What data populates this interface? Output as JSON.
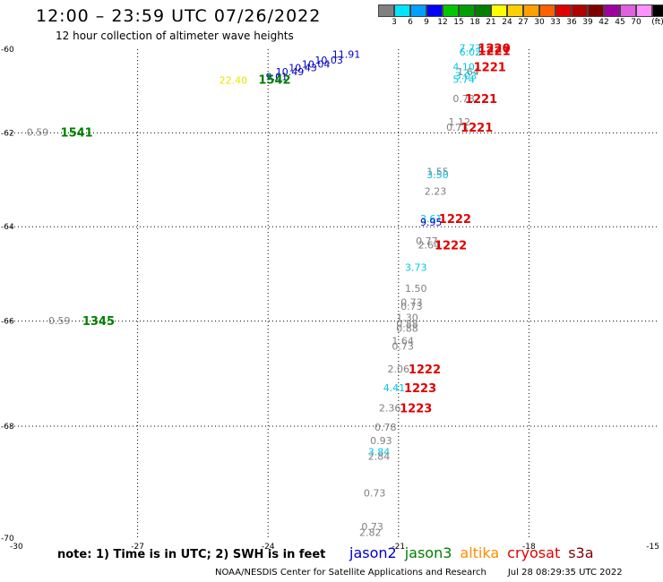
{
  "header": {
    "title": "12:00 – 23:59 UTC 07/26/2022",
    "subtitle": "12 hour collection of altimeter wave heights"
  },
  "colorbar": {
    "colors": [
      "#808080",
      "#00e5ff",
      "#00a0ff",
      "#0000ff",
      "#00c800",
      "#00a000",
      "#008000",
      "#ffff00",
      "#ffd000",
      "#ffa000",
      "#ff6000",
      "#e00000",
      "#b00000",
      "#800000",
      "#a000a0",
      "#e060e0",
      "#ff90ff",
      "#000000"
    ],
    "labels": [
      "3",
      "6",
      "9",
      "12",
      "15",
      "18",
      "21",
      "24",
      "27",
      "30",
      "33",
      "36",
      "39",
      "42",
      "45",
      "70",
      "(ft)"
    ]
  },
  "chart_data": {
    "type": "scatter",
    "title": "12:00 – 23:59 UTC 07/26/2022",
    "subtitle": "12 hour collection of altimeter wave heights",
    "xlabel": "",
    "ylabel": "",
    "xlim": [
      -30,
      -15
    ],
    "ylim": [
      -70,
      -60
    ],
    "x_ticks": [
      "-30",
      "-27",
      "-24",
      "-21",
      "-18",
      "-15"
    ],
    "y_ticks": [
      "-60",
      "-62",
      "-64",
      "-66",
      "-68",
      "-70"
    ],
    "grid": true,
    "satellites": [
      {
        "name": "jason2",
        "color": "#0000c8"
      },
      {
        "name": "jason3",
        "color": "#008000"
      },
      {
        "name": "altika",
        "color": "#ff8c00"
      },
      {
        "name": "cryosat",
        "color": "#e00000"
      },
      {
        "name": "s3a",
        "color": "#800000"
      }
    ],
    "wave_heights": [
      {
        "lon": -23.8,
        "lat": -60.74,
        "text": "9.01",
        "color": "#0000c8"
      },
      {
        "lon": -23.5,
        "lat": -60.62,
        "text": "10.49",
        "color": "#0000c8"
      },
      {
        "lon": -23.2,
        "lat": -60.52,
        "text": "10.43",
        "color": "#0000c8"
      },
      {
        "lon": -22.9,
        "lat": -60.44,
        "text": "10.04",
        "color": "#0000c8"
      },
      {
        "lon": -22.6,
        "lat": -60.34,
        "text": "10.03",
        "color": "#0000c8"
      },
      {
        "lon": -22.2,
        "lat": -60.2,
        "text": "11.91",
        "color": "#0000c8"
      },
      {
        "lon": -24.8,
        "lat": -60.82,
        "text": "22.40",
        "color": "#e8e800"
      },
      {
        "lon": -19.35,
        "lat": -60.05,
        "text": "7.73",
        "color": "#00c8e0"
      },
      {
        "lon": -19.35,
        "lat": -60.15,
        "text": "6.02",
        "color": "#00c8e0"
      },
      {
        "lon": -19.5,
        "lat": -60.5,
        "text": "4.10",
        "color": "#00c8e0"
      },
      {
        "lon": -19.4,
        "lat": -60.62,
        "text": "1.64",
        "color": "#808080"
      },
      {
        "lon": -19.45,
        "lat": -60.72,
        "text": "3.03",
        "color": "#00c8e0"
      },
      {
        "lon": -19.5,
        "lat": -60.8,
        "text": "5.74",
        "color": "#00c8e0"
      },
      {
        "lon": -19.5,
        "lat": -61.26,
        "text": "0.73",
        "color": "#808080"
      },
      {
        "lon": -29.3,
        "lat": -62.06,
        "text": "0.59",
        "color": "#808080"
      },
      {
        "lon": -19.6,
        "lat": -61.82,
        "text": "1.12",
        "color": "#808080"
      },
      {
        "lon": -19.65,
        "lat": -61.95,
        "text": "0.73",
        "color": "#808080"
      },
      {
        "lon": -20.1,
        "lat": -62.9,
        "text": "1.55",
        "color": "#808080"
      },
      {
        "lon": -20.1,
        "lat": -62.97,
        "text": "3.50",
        "color": "#00c8e0"
      },
      {
        "lon": -20.15,
        "lat": -63.32,
        "text": "2.23",
        "color": "#808080"
      },
      {
        "lon": -20.25,
        "lat": -63.9,
        "text": "3.61",
        "color": "#00c8e0"
      },
      {
        "lon": -20.25,
        "lat": -63.98,
        "text": "9.95",
        "color": "#0000c8"
      },
      {
        "lon": -20.35,
        "lat": -64.38,
        "text": "0.77",
        "color": "#808080"
      },
      {
        "lon": -20.3,
        "lat": -64.46,
        "text": "2.64",
        "color": "#808080"
      },
      {
        "lon": -20.6,
        "lat": -64.94,
        "text": "3.73",
        "color": "#00c8e0"
      },
      {
        "lon": -20.6,
        "lat": -65.38,
        "text": "1.50",
        "color": "#808080"
      },
      {
        "lon": -20.7,
        "lat": -65.68,
        "text": "0.73",
        "color": "#808080"
      },
      {
        "lon": -20.7,
        "lat": -65.76,
        "text": "0.73",
        "color": "#808080"
      },
      {
        "lon": -20.8,
        "lat": -66.0,
        "text": "1.30",
        "color": "#808080"
      },
      {
        "lon": -20.8,
        "lat": -66.12,
        "text": "0.88",
        "color": "#808080"
      },
      {
        "lon": -20.8,
        "lat": -66.2,
        "text": "0.88",
        "color": "#808080"
      },
      {
        "lon": -20.9,
        "lat": -66.44,
        "text": "1.64",
        "color": "#808080"
      },
      {
        "lon": -20.9,
        "lat": -66.54,
        "text": "0.73",
        "color": "#808080"
      },
      {
        "lon": -28.8,
        "lat": -66.06,
        "text": "0.59",
        "color": "#808080"
      },
      {
        "lon": -21.0,
        "lat": -66.98,
        "text": "2.06",
        "color": "#808080"
      },
      {
        "lon": -21.1,
        "lat": -67.34,
        "text": "4.41",
        "color": "#00c8e0"
      },
      {
        "lon": -21.2,
        "lat": -67.72,
        "text": "2.36",
        "color": "#808080"
      },
      {
        "lon": -21.3,
        "lat": -68.08,
        "text": "0.78",
        "color": "#808080"
      },
      {
        "lon": -21.4,
        "lat": -68.32,
        "text": "0.93",
        "color": "#808080"
      },
      {
        "lon": -21.45,
        "lat": -68.52,
        "text": "3.84",
        "color": "#00c8e0"
      },
      {
        "lon": -21.45,
        "lat": -68.6,
        "text": "2.84",
        "color": "#808080"
      },
      {
        "lon": -21.55,
        "lat": -69.26,
        "text": "0.73",
        "color": "#808080"
      },
      {
        "lon": -21.6,
        "lat": -69.86,
        "text": "0.73",
        "color": "#808080"
      },
      {
        "lon": -21.65,
        "lat": -69.96,
        "text": "2.82",
        "color": "#808080"
      }
    ],
    "time_labels": [
      {
        "lon": -23.85,
        "lat": -60.8,
        "text": "1542",
        "color": "#008000"
      },
      {
        "lon": -28.4,
        "lat": -62.06,
        "text": "1541",
        "color": "#008000"
      },
      {
        "lon": -27.9,
        "lat": -66.06,
        "text": "1345",
        "color": "#008000"
      },
      {
        "lon": -18.8,
        "lat": -60.05,
        "text": "1220",
        "color": "#e00000"
      },
      {
        "lon": -18.8,
        "lat": -60.12,
        "text": "1221",
        "color": "#e00000"
      },
      {
        "lon": -18.9,
        "lat": -60.5,
        "text": "1221",
        "color": "#e00000"
      },
      {
        "lon": -19.1,
        "lat": -61.26,
        "text": "1221",
        "color": "#e00000"
      },
      {
        "lon": -19.2,
        "lat": -61.95,
        "text": "1221",
        "color": "#e00000"
      },
      {
        "lon": -19.7,
        "lat": -63.9,
        "text": "1222",
        "color": "#e00000"
      },
      {
        "lon": -19.8,
        "lat": -64.46,
        "text": "1222",
        "color": "#e00000"
      },
      {
        "lon": -20.4,
        "lat": -66.98,
        "text": "1222",
        "color": "#e00000"
      },
      {
        "lon": -20.5,
        "lat": -67.34,
        "text": "1223",
        "color": "#e00000"
      },
      {
        "lon": -20.6,
        "lat": -67.72,
        "text": "1223",
        "color": "#e00000"
      }
    ]
  },
  "note": "note: 1) Time is in UTC; 2) SWH is in feet",
  "footer": {
    "credit": "NOAA/NESDIS Center for Satellite Applications and Research",
    "timestamp": "Jul 28 08:29:35 UTC 2022"
  }
}
